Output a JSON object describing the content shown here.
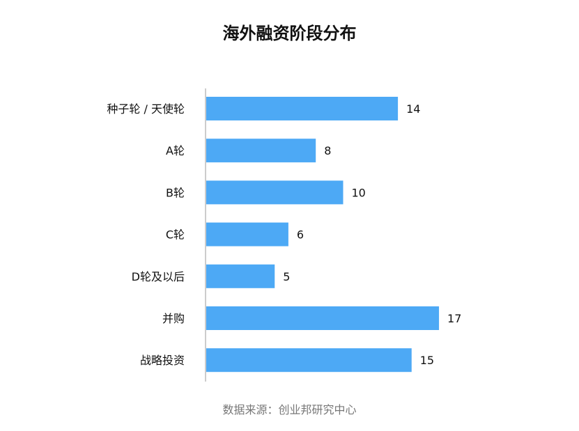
{
  "chart_data": {
    "type": "bar",
    "orientation": "horizontal",
    "title": "海外融资阶段分布",
    "categories": [
      "种子轮 / 天使轮",
      "A轮",
      "B轮",
      "C轮",
      "D轮及以后",
      "并购",
      "战略投资"
    ],
    "values": [
      14,
      8,
      10,
      6,
      5,
      17,
      15
    ],
    "xlim": [
      0,
      17
    ],
    "grid": false,
    "color": "#4DA9F5"
  },
  "source": "数据来源：创业邦研究中心"
}
